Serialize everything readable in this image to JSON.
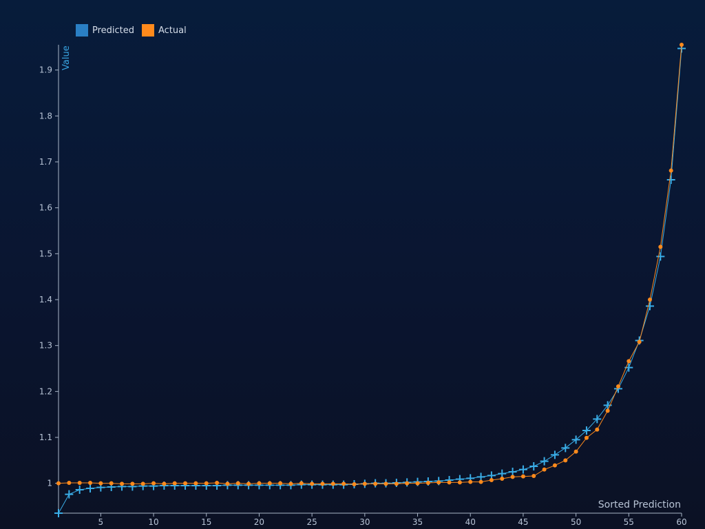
{
  "chart_data": {
    "type": "line",
    "xlabel": "Sorted Prediction",
    "ylabel": "Value",
    "xlim": [
      1,
      60
    ],
    "ylim": [
      0.935,
      1.955
    ],
    "x_ticks": [
      5,
      10,
      15,
      20,
      25,
      30,
      35,
      40,
      45,
      50,
      55,
      60
    ],
    "y_ticks": [
      1,
      1.1,
      1.2,
      1.3,
      1.4,
      1.5,
      1.6,
      1.7,
      1.8,
      1.9
    ],
    "y_tick_labels": [
      "1",
      "1.1",
      "1.2",
      "1.3",
      "1.4",
      "1.5",
      "1.6",
      "1.7",
      "1.8",
      "1.9"
    ],
    "grid": false,
    "legend_position": "top-left",
    "x": [
      1,
      2,
      3,
      4,
      5,
      6,
      7,
      8,
      9,
      10,
      11,
      12,
      13,
      14,
      15,
      16,
      17,
      18,
      19,
      20,
      21,
      22,
      23,
      24,
      25,
      26,
      27,
      28,
      29,
      30,
      31,
      32,
      33,
      34,
      35,
      36,
      37,
      38,
      39,
      40,
      41,
      42,
      43,
      44,
      45,
      46,
      47,
      48,
      49,
      50,
      51,
      52,
      53,
      54,
      55,
      56,
      57,
      58,
      59,
      60
    ],
    "series": [
      {
        "name": "Predicted",
        "color": "#3aaee8",
        "marker": "plus",
        "values": [
          0.935,
          0.976,
          0.986,
          0.989,
          0.991,
          0.992,
          0.993,
          0.993,
          0.994,
          0.994,
          0.995,
          0.995,
          0.995,
          0.995,
          0.995,
          0.995,
          0.996,
          0.996,
          0.996,
          0.996,
          0.996,
          0.996,
          0.996,
          0.997,
          0.997,
          0.997,
          0.997,
          0.997,
          0.998,
          0.999,
          1.0,
          1.0,
          1.001,
          1.002,
          1.003,
          1.004,
          1.005,
          1.007,
          1.009,
          1.011,
          1.014,
          1.017,
          1.021,
          1.025,
          1.03,
          1.037,
          1.048,
          1.062,
          1.077,
          1.095,
          1.115,
          1.14,
          1.17,
          1.206,
          1.252,
          1.311,
          1.386,
          1.494,
          1.661,
          1.947
        ]
      },
      {
        "name": "Actual",
        "color": "#ff8a1c",
        "marker": "dot",
        "values": [
          1.0,
          1.001,
          1.001,
          1.001,
          1.0,
          1.0,
          0.999,
          0.999,
          0.999,
          1.0,
          0.999,
          1.0,
          1.0,
          1.0,
          1.0,
          1.001,
          0.999,
          1.0,
          0.999,
          1.0,
          1.0,
          1.0,
          0.999,
          1.0,
          0.999,
          0.999,
          0.999,
          0.999,
          0.998,
          0.999,
          0.999,
          0.999,
          0.999,
          1.0,
          1.0,
          1.001,
          1.002,
          1.002,
          1.002,
          1.003,
          1.003,
          1.007,
          1.01,
          1.014,
          1.015,
          1.016,
          1.03,
          1.039,
          1.05,
          1.069,
          1.099,
          1.117,
          1.158,
          1.211,
          1.266,
          1.308,
          1.4,
          1.515,
          1.681,
          1.955
        ]
      }
    ]
  }
}
